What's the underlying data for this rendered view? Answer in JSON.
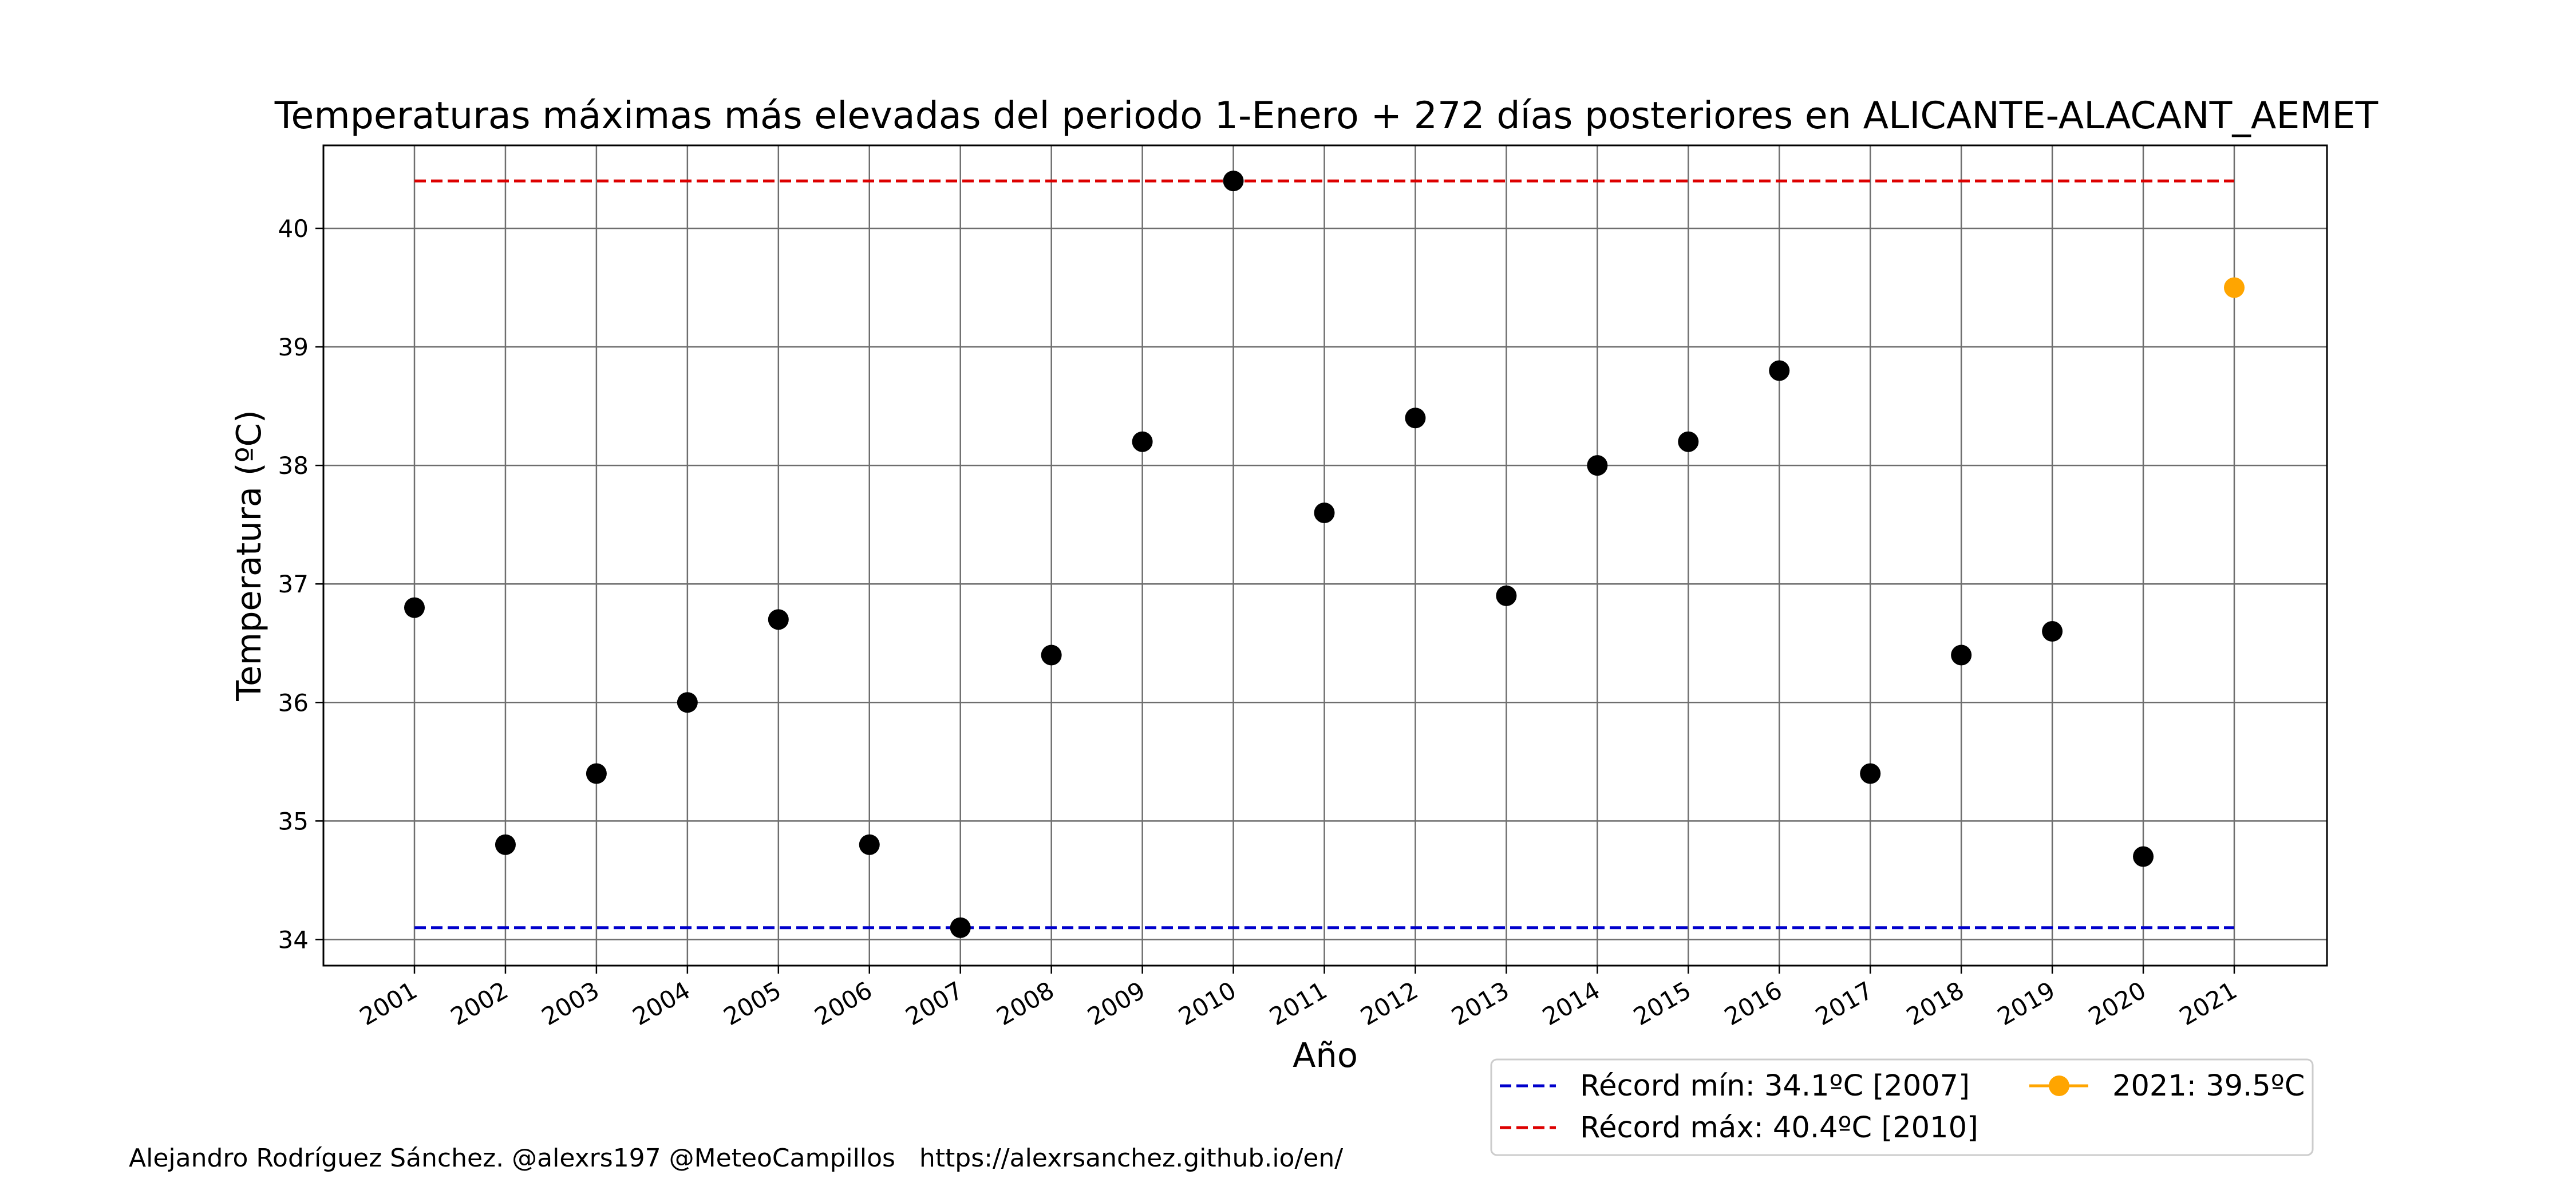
{
  "chart_data": {
    "type": "scatter",
    "title": "Temperaturas máximas más elevadas del periodo 1-Enero + 272 días posteriores en ALICANTE-ALACANT_AEMET",
    "xlabel": "Año",
    "ylabel": "Temperatura (ºC)",
    "x": [
      "2001",
      "2002",
      "2003",
      "2004",
      "2005",
      "2006",
      "2007",
      "2008",
      "2009",
      "2010",
      "2011",
      "2012",
      "2013",
      "2014",
      "2015",
      "2016",
      "2017",
      "2018",
      "2019",
      "2020",
      "2021"
    ],
    "series": [
      {
        "color": "#000000",
        "x": [
          "2001",
          "2002",
          "2003",
          "2004",
          "2005",
          "2006",
          "2007",
          "2008",
          "2009",
          "2010",
          "2011",
          "2012",
          "2013",
          "2014",
          "2015",
          "2016",
          "2017",
          "2018",
          "2019",
          "2020"
        ],
        "values": [
          36.8,
          34.8,
          35.4,
          36.0,
          36.7,
          34.8,
          34.1,
          36.4,
          38.2,
          40.4,
          37.6,
          38.4,
          36.9,
          38.0,
          38.2,
          38.8,
          35.4,
          36.4,
          36.6,
          34.7
        ]
      },
      {
        "name": "2021: 39.5ºC",
        "color": "#ffa500",
        "x": [
          "2021"
        ],
        "values": [
          39.5
        ]
      }
    ],
    "reference_lines": [
      {
        "name": "Récord mín: 34.1ºC [2007]",
        "value": 34.1,
        "color": "#0000cc",
        "style": "dashed"
      },
      {
        "name": "Récord máx: 40.4ºC [2010]",
        "value": 40.4,
        "color": "#dd0000",
        "style": "dashed"
      }
    ],
    "yticks": [
      34,
      35,
      36,
      37,
      38,
      39,
      40
    ],
    "ylim": [
      33.78,
      40.7
    ],
    "grid": true,
    "legend_position": "bottom-right, below plot"
  },
  "footer": {
    "credit": "Alejandro Rodríguez Sánchez. @alexrs197 @MeteoCampillos   https://alexrsanchez.github.io/en/"
  }
}
